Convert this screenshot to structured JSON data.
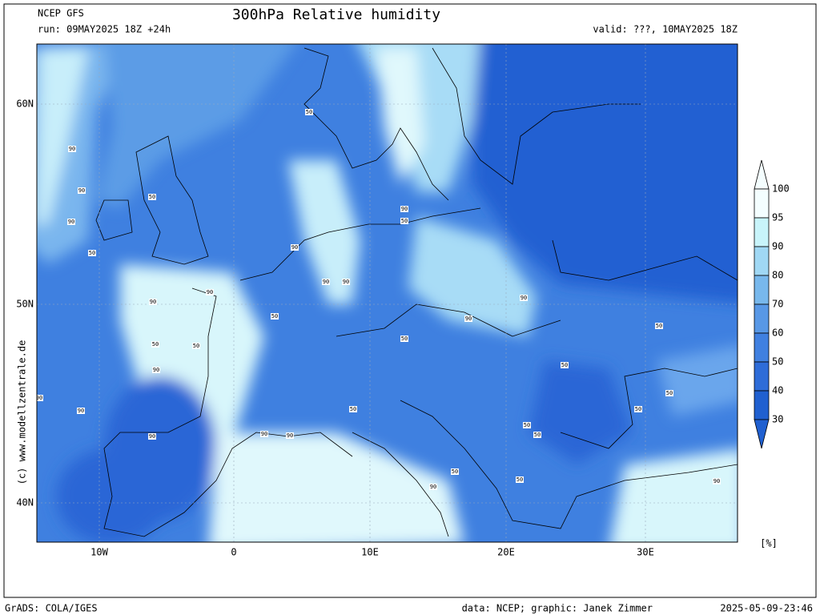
{
  "header": {
    "model": "NCEP GFS",
    "run": "run: 09MAY2025 18Z +24h",
    "title": "300hPa Relative humidity",
    "valid": "valid: ???, 10MAY2025 18Z"
  },
  "lat_labels": [
    "60N",
    "50N",
    "40N"
  ],
  "lon_labels": [
    "10W",
    "0",
    "10E",
    "20E",
    "30E"
  ],
  "colorbar": {
    "levels": [
      100,
      95,
      90,
      80,
      70,
      60,
      50,
      40,
      30
    ],
    "colors": [
      "#f4feff",
      "#c8f4fa",
      "#a0d8f4",
      "#78b8ec",
      "#5898e6",
      "#4080e0",
      "#2e6cd8",
      "#2060d0"
    ],
    "unit": "[%]"
  },
  "contour_labels": [
    "50",
    "90",
    "90",
    "50",
    "90",
    "50",
    "90",
    "90",
    "90",
    "90",
    "90",
    "50",
    "90",
    "50",
    "90",
    "90",
    "50",
    "50",
    "50",
    "90",
    "90",
    "50",
    "50",
    "50",
    "50",
    "50",
    "90",
    "50",
    "90",
    "50",
    "90",
    "90",
    "50",
    "90",
    "50",
    "90"
  ],
  "side_text": "(c) www.modellzentrale.de",
  "footer": {
    "left": "GrADS: COLA/IGES",
    "middle": "data: NCEP; graphic: Janek Zimmer",
    "right": "2025-05-09-23:46"
  }
}
